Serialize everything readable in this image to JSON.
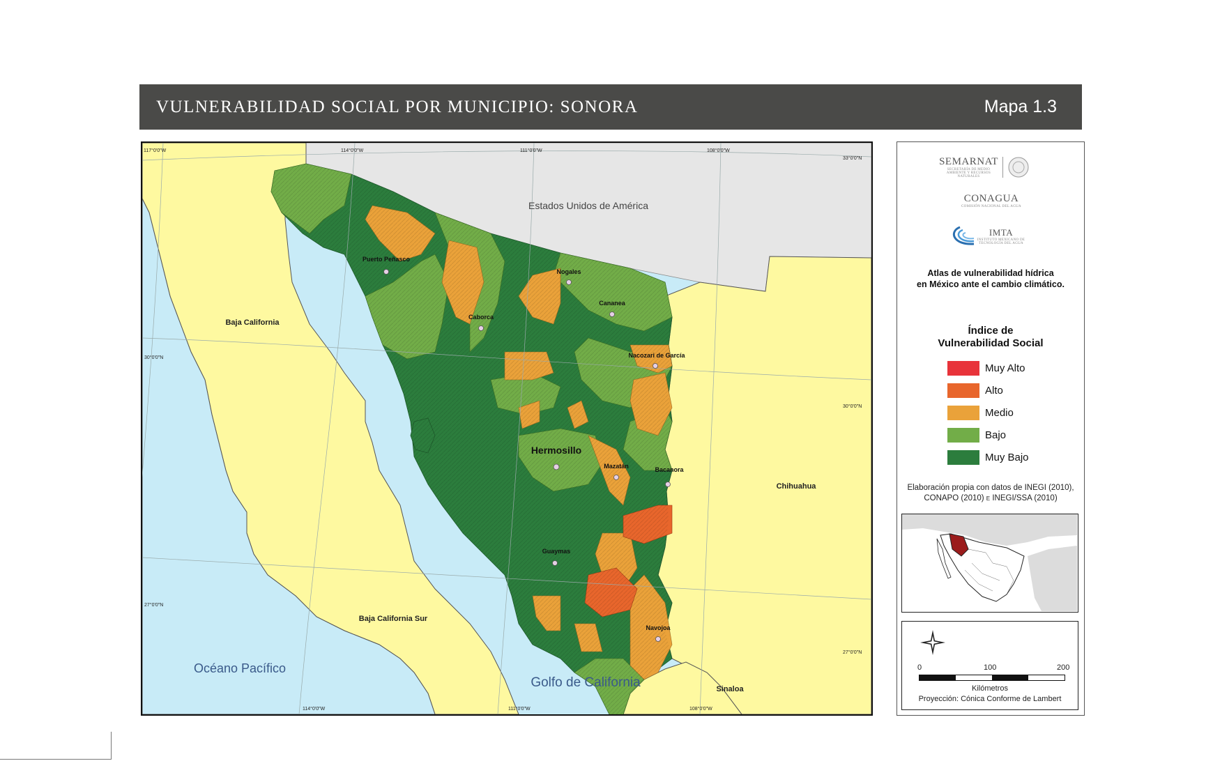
{
  "header": {
    "title": "VULNERABILIDAD SOCIAL POR MUNICIPIO: SONORA",
    "map_number": "Mapa 1.3"
  },
  "map": {
    "graticule": {
      "top": [
        "117°0'0\"W",
        "114°0'0\"W",
        "111°0'0\"W",
        "108°0'0\"W"
      ],
      "bottom": [
        "114°0'0\"W",
        "111°0'0\"W",
        "108°0'0\"W"
      ],
      "left": [
        "30°0'0\"N",
        "27°0'0\"N"
      ],
      "right": [
        "33°0'0\"N",
        "30°0'0\"N",
        "27°0'0\"N"
      ]
    },
    "regions": {
      "usa": "Estados Unidos de América",
      "baja_california": "Baja California",
      "baja_california_sur": "Baja California Sur",
      "chihuahua": "Chihuahua",
      "sinaloa": "Sinaloa",
      "pacific": "Océano Pacífico",
      "gulf": "Golfo de California"
    },
    "cities": [
      {
        "name": "Puerto Peñasco"
      },
      {
        "name": "Nogales"
      },
      {
        "name": "Cananea"
      },
      {
        "name": "Caborca"
      },
      {
        "name": "Nacozari de García"
      },
      {
        "name": "Hermosillo"
      },
      {
        "name": "Mazatán"
      },
      {
        "name": "Bacanora"
      },
      {
        "name": "Guaymas"
      },
      {
        "name": "Navojoa"
      }
    ],
    "colors": {
      "ocean": "#c8ebf7",
      "neighbor_state": "#fef9a0",
      "usa": "#e6e6e6",
      "muy_alto": "#e8333a",
      "alto": "#e8662c",
      "medio": "#eaa23a",
      "bajo": "#72ad48",
      "muy_bajo": "#2c7d3d"
    }
  },
  "panel": {
    "logos": {
      "semarnat": "SEMARNAT",
      "semarnat_sub": "SECRETARÍA DE MEDIO AMBIENTE Y RECURSOS NATURALES",
      "conagua": "CONAGUA",
      "conagua_sub": "COMISIÓN NACIONAL DEL AGUA",
      "imta": "IMTA",
      "imta_sub": "INSTITUTO MEXICANO DE TECNOLOGÍA DEL AGUA"
    },
    "atlas_title_1": "Atlas de vulnerabilidad  hídrica",
    "atlas_title_2": "en México ante el cambio climático.",
    "legend_title_1": "Índice de",
    "legend_title_2": "Vulnerabilidad Social",
    "legend": [
      {
        "label": "Muy Alto",
        "color": "#e8333a"
      },
      {
        "label": "Alto",
        "color": "#e8662c"
      },
      {
        "label": "Medio",
        "color": "#eaa23a"
      },
      {
        "label": "Bajo",
        "color": "#72ad48"
      },
      {
        "label": "Muy Bajo",
        "color": "#2c7d3d"
      }
    ],
    "credits_1": "Elaboración propia con datos de INEGI (2010),",
    "credits_2": "CONAPO (2010) e INEGI/SSA (2010)",
    "scale": {
      "ticks": [
        "0",
        "100",
        "200"
      ],
      "unit": "Kilómetros",
      "projection": "Proyección: Cónica Conforme de Lambert"
    }
  }
}
